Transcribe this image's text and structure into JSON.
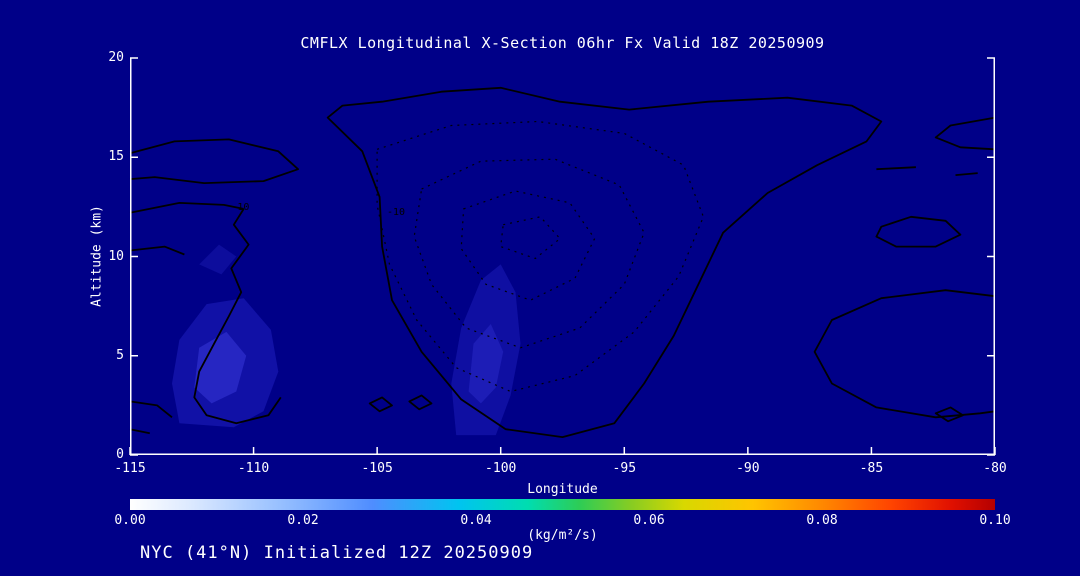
{
  "chart_data": {
    "type": "contour",
    "title": "CMFLX Longitudinal X-Section 06hr  Fx Valid 18Z 20250909",
    "xlabel": "Longitude",
    "ylabel": "Altitude (km)",
    "footer": "NYC (41°N) Initialized 12Z 20250909",
    "x_range": [
      -115,
      -80
    ],
    "y_range": [
      0,
      20
    ],
    "x_ticks": [
      -115,
      -110,
      -105,
      -100,
      -95,
      -90,
      -85,
      -80
    ],
    "y_ticks": [
      0,
      5,
      10,
      15,
      20
    ],
    "background_color": "#000088",
    "axis_color": "#ffffff",
    "contour_color": "#000000",
    "colorbar": {
      "unit": "(kg/m²/s)",
      "ticks": [
        "0.00",
        "0.02",
        "0.04",
        "0.06",
        "0.08",
        "0.10"
      ],
      "min": 0.0,
      "max": 0.1,
      "stops": [
        {
          "pos": 0,
          "color": "#ffffff"
        },
        {
          "pos": 7,
          "color": "#dce9ff"
        },
        {
          "pos": 18,
          "color": "#93bdff"
        },
        {
          "pos": 28,
          "color": "#4f8dff"
        },
        {
          "pos": 38,
          "color": "#00c4f0"
        },
        {
          "pos": 46,
          "color": "#00ddb0"
        },
        {
          "pos": 52,
          "color": "#2ecc55"
        },
        {
          "pos": 58,
          "color": "#88cc22"
        },
        {
          "pos": 64,
          "color": "#d8d800"
        },
        {
          "pos": 72,
          "color": "#ffc400"
        },
        {
          "pos": 80,
          "color": "#ff8800"
        },
        {
          "pos": 88,
          "color": "#ff4400"
        },
        {
          "pos": 95,
          "color": "#e01000"
        },
        {
          "pos": 100,
          "color": "#b40000"
        }
      ]
    },
    "shading": [
      {
        "color": "#1111a6",
        "points": [
          [
            -113.0,
            1.6
          ],
          [
            -113.3,
            3.6
          ],
          [
            -113.0,
            5.8
          ],
          [
            -111.9,
            7.6
          ],
          [
            -110.4,
            7.9
          ],
          [
            -109.3,
            6.3
          ],
          [
            -109.0,
            4.2
          ],
          [
            -109.6,
            2.2
          ],
          [
            -110.8,
            1.4
          ]
        ]
      },
      {
        "color": "#2626c2",
        "points": [
          [
            -112.4,
            3.4
          ],
          [
            -112.2,
            5.4
          ],
          [
            -111.1,
            6.2
          ],
          [
            -110.3,
            5.0
          ],
          [
            -110.7,
            3.2
          ],
          [
            -111.7,
            2.6
          ]
        ]
      },
      {
        "color": "#0f0fa2",
        "points": [
          [
            -101.8,
            1.0
          ],
          [
            -102.0,
            3.6
          ],
          [
            -101.6,
            6.4
          ],
          [
            -100.8,
            8.8
          ],
          [
            -100.0,
            9.6
          ],
          [
            -99.4,
            8.2
          ],
          [
            -99.2,
            5.6
          ],
          [
            -99.6,
            3.0
          ],
          [
            -100.2,
            1.0
          ]
        ]
      },
      {
        "color": "#1d1db6",
        "points": [
          [
            -101.3,
            3.2
          ],
          [
            -101.1,
            5.6
          ],
          [
            -100.4,
            6.6
          ],
          [
            -99.9,
            5.2
          ],
          [
            -100.2,
            3.4
          ],
          [
            -100.8,
            2.6
          ]
        ]
      },
      {
        "color": "#0d0d9c",
        "points": [
          [
            -112.2,
            9.6
          ],
          [
            -111.4,
            10.6
          ],
          [
            -110.7,
            10.0
          ],
          [
            -111.3,
            9.1
          ]
        ]
      }
    ],
    "contours_solid": [
      {
        "closed": false,
        "points": [
          [
            -115,
            15.2
          ],
          [
            -113.2,
            15.8
          ],
          [
            -111.0,
            15.9
          ],
          [
            -109.0,
            15.3
          ],
          [
            -108.2,
            14.4
          ],
          [
            -109.6,
            13.8
          ],
          [
            -112.0,
            13.7
          ],
          [
            -114.0,
            14.0
          ],
          [
            -115,
            13.9
          ]
        ]
      },
      {
        "closed": false,
        "points": [
          [
            -115,
            12.2
          ],
          [
            -113.0,
            12.7
          ],
          [
            -111.2,
            12.6
          ],
          [
            -110.4,
            12.4
          ]
        ]
      },
      {
        "closed": false,
        "points": [
          [
            -110.4,
            12.4
          ],
          [
            -110.8,
            11.6
          ],
          [
            -110.2,
            10.6
          ],
          [
            -110.9,
            9.4
          ],
          [
            -110.5,
            8.2
          ],
          [
            -111.0,
            7.0
          ],
          [
            -111.6,
            5.6
          ],
          [
            -112.2,
            4.2
          ],
          [
            -112.4,
            2.9
          ],
          [
            -111.9,
            2.0
          ],
          [
            -110.7,
            1.6
          ],
          [
            -109.4,
            2.0
          ],
          [
            -108.9,
            2.9
          ]
        ]
      },
      {
        "closed": false,
        "points": [
          [
            -115,
            10.3
          ],
          [
            -113.6,
            10.5
          ],
          [
            -112.8,
            10.1
          ]
        ]
      },
      {
        "closed": false,
        "points": [
          [
            -115,
            2.7
          ],
          [
            -113.9,
            2.5
          ],
          [
            -113.3,
            1.9
          ]
        ]
      },
      {
        "closed": false,
        "points": [
          [
            -115,
            1.3
          ],
          [
            -114.2,
            1.1
          ]
        ]
      },
      {
        "closed": true,
        "points": [
          [
            -107.0,
            17.0
          ],
          [
            -105.6,
            15.3
          ],
          [
            -104.9,
            13.0
          ],
          [
            -104.8,
            10.5
          ],
          [
            -104.4,
            7.8
          ],
          [
            -103.2,
            5.2
          ],
          [
            -101.6,
            2.8
          ],
          [
            -99.8,
            1.3
          ],
          [
            -97.5,
            0.9
          ],
          [
            -95.4,
            1.6
          ],
          [
            -94.2,
            3.6
          ],
          [
            -93.0,
            6.0
          ],
          [
            -92.0,
            8.6
          ],
          [
            -91.0,
            11.2
          ],
          [
            -89.2,
            13.2
          ],
          [
            -87.2,
            14.6
          ],
          [
            -85.2,
            15.8
          ],
          [
            -84.6,
            16.8
          ],
          [
            -85.8,
            17.6
          ],
          [
            -88.4,
            18.0
          ],
          [
            -91.6,
            17.8
          ],
          [
            -94.8,
            17.4
          ],
          [
            -97.6,
            17.8
          ],
          [
            -100.0,
            18.5
          ],
          [
            -102.4,
            18.3
          ],
          [
            -104.8,
            17.8
          ],
          [
            -106.4,
            17.6
          ]
        ]
      },
      {
        "closed": false,
        "points": [
          [
            -80,
            8.0
          ],
          [
            -82.0,
            8.3
          ],
          [
            -84.6,
            7.9
          ],
          [
            -86.6,
            6.8
          ],
          [
            -87.3,
            5.2
          ],
          [
            -86.6,
            3.6
          ],
          [
            -84.8,
            2.4
          ],
          [
            -82.4,
            1.9
          ],
          [
            -80.6,
            2.1
          ],
          [
            -80,
            2.2
          ]
        ]
      },
      {
        "closed": true,
        "points": [
          [
            -84.6,
            11.5
          ],
          [
            -83.4,
            12.0
          ],
          [
            -82.0,
            11.8
          ],
          [
            -81.4,
            11.1
          ],
          [
            -82.4,
            10.5
          ],
          [
            -84.0,
            10.5
          ],
          [
            -84.8,
            11.0
          ]
        ]
      },
      {
        "closed": false,
        "points": [
          [
            -80,
            17.0
          ],
          [
            -81.8,
            16.6
          ],
          [
            -82.4,
            16.0
          ],
          [
            -81.4,
            15.5
          ],
          [
            -80,
            15.4
          ]
        ]
      },
      {
        "closed": false,
        "points": [
          [
            -84.8,
            14.4
          ],
          [
            -83.2,
            14.5
          ]
        ]
      },
      {
        "closed": false,
        "points": [
          [
            -81.6,
            14.1
          ],
          [
            -80.7,
            14.2
          ]
        ]
      },
      {
        "closed": true,
        "points": [
          [
            -105.3,
            2.6
          ],
          [
            -104.8,
            2.9
          ],
          [
            -104.4,
            2.5
          ],
          [
            -104.9,
            2.2
          ]
        ]
      },
      {
        "closed": true,
        "points": [
          [
            -103.7,
            2.7
          ],
          [
            -103.2,
            3.0
          ],
          [
            -102.8,
            2.6
          ],
          [
            -103.3,
            2.3
          ]
        ]
      },
      {
        "closed": true,
        "points": [
          [
            -82.4,
            2.1
          ],
          [
            -81.8,
            2.4
          ],
          [
            -81.3,
            2.0
          ],
          [
            -81.9,
            1.7
          ]
        ]
      }
    ],
    "contours_dashed": [
      {
        "closed": true,
        "points": [
          [
            -105.0,
            15.4
          ],
          [
            -102.0,
            16.6
          ],
          [
            -98.5,
            16.8
          ],
          [
            -95.0,
            16.2
          ],
          [
            -92.6,
            14.6
          ],
          [
            -91.8,
            12.0
          ],
          [
            -92.8,
            9.0
          ],
          [
            -94.6,
            6.2
          ],
          [
            -97.0,
            4.0
          ],
          [
            -99.6,
            3.2
          ],
          [
            -101.8,
            4.4
          ],
          [
            -103.4,
            6.8
          ],
          [
            -104.5,
            9.6
          ],
          [
            -105.0,
            12.6
          ]
        ]
      },
      {
        "closed": true,
        "points": [
          [
            -103.2,
            13.4
          ],
          [
            -100.8,
            14.8
          ],
          [
            -97.8,
            14.9
          ],
          [
            -95.2,
            13.6
          ],
          [
            -94.2,
            11.2
          ],
          [
            -95.0,
            8.6
          ],
          [
            -96.8,
            6.4
          ],
          [
            -99.2,
            5.4
          ],
          [
            -101.4,
            6.4
          ],
          [
            -102.8,
            8.6
          ],
          [
            -103.5,
            11.0
          ]
        ]
      },
      {
        "closed": true,
        "points": [
          [
            -101.5,
            12.4
          ],
          [
            -99.4,
            13.3
          ],
          [
            -97.2,
            12.7
          ],
          [
            -96.2,
            10.9
          ],
          [
            -97.0,
            8.9
          ],
          [
            -98.8,
            7.8
          ],
          [
            -100.6,
            8.6
          ],
          [
            -101.6,
            10.4
          ]
        ]
      },
      {
        "closed": true,
        "points": [
          [
            -99.9,
            11.6
          ],
          [
            -98.4,
            12.0
          ],
          [
            -97.6,
            10.9
          ],
          [
            -98.6,
            9.9
          ],
          [
            -100.0,
            10.5
          ]
        ]
      }
    ],
    "contour_labels": [
      {
        "text": "-10",
        "x": -110.9,
        "y": 12.35
      },
      {
        "text": "-10",
        "x": -104.6,
        "y": 12.1
      }
    ]
  }
}
